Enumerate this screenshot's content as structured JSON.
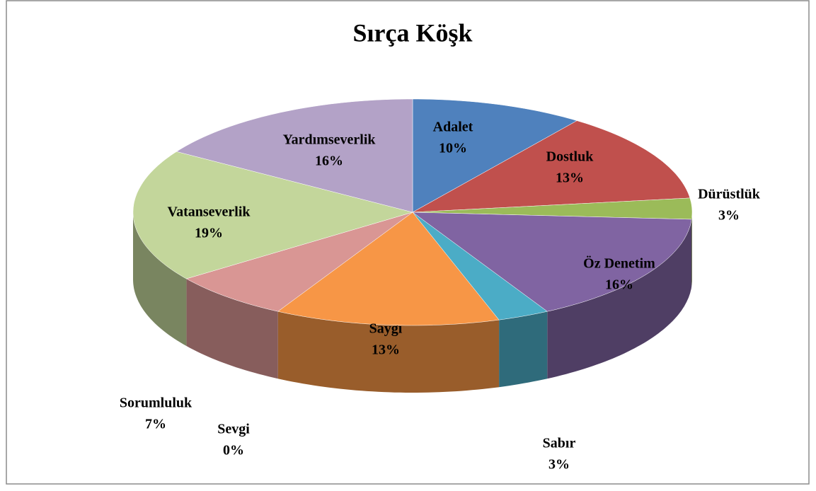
{
  "chart_data": {
    "type": "pie",
    "title": "Sırça Köşk",
    "categories": [
      "Adalet",
      "Dostluk",
      "Dürüstlük",
      "Öz Denetim",
      "Sabır",
      "Saygı",
      "Sevgi",
      "Sorumluluk",
      "Vatanseverlik",
      "Yardımseverlik"
    ],
    "values": [
      10,
      13,
      3,
      16,
      3,
      13,
      0,
      7,
      19,
      16
    ],
    "value_labels": [
      "10%",
      "13%",
      "3%",
      "16%",
      "3%",
      "13%",
      "0%",
      "7%",
      "19%",
      "16%"
    ],
    "colors": [
      "#4f81bd",
      "#c0504d",
      "#9bbb59",
      "#8064a2",
      "#4bacc6",
      "#f79646",
      "#95b3d7",
      "#d99694",
      "#c3d69b",
      "#b3a2c7"
    ]
  }
}
